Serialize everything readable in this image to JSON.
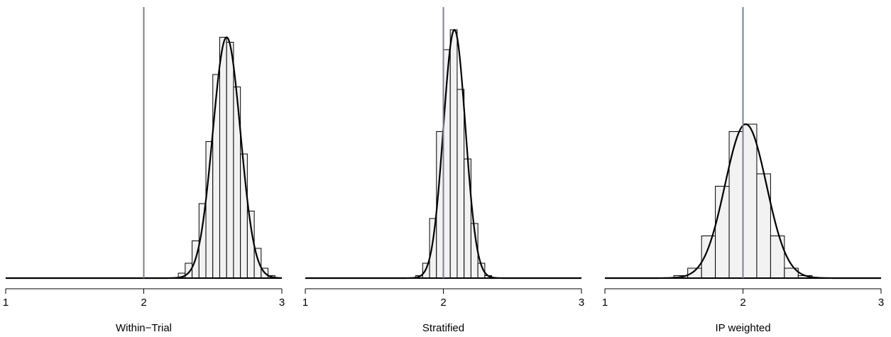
{
  "chart_data": [
    {
      "type": "bar",
      "title": "Within−Trial",
      "xlim": [
        1,
        3
      ],
      "x_ticks": [
        "1",
        "2",
        "3"
      ],
      "reference_x": 2,
      "density_curve": {
        "mean": 2.6,
        "sd": 0.1
      },
      "bin_width": 0.05,
      "bins": [
        {
          "x0": 2.25,
          "value": 0.02
        },
        {
          "x0": 2.3,
          "value": 0.06
        },
        {
          "x0": 2.35,
          "value": 0.15
        },
        {
          "x0": 2.4,
          "value": 0.3
        },
        {
          "x0": 2.45,
          "value": 0.55
        },
        {
          "x0": 2.5,
          "value": 0.82
        },
        {
          "x0": 2.55,
          "value": 0.97
        },
        {
          "x0": 2.6,
          "value": 0.95
        },
        {
          "x0": 2.65,
          "value": 0.77
        },
        {
          "x0": 2.7,
          "value": 0.5
        },
        {
          "x0": 2.75,
          "value": 0.27
        },
        {
          "x0": 2.8,
          "value": 0.12
        },
        {
          "x0": 2.85,
          "value": 0.04
        },
        {
          "x0": 2.9,
          "value": 0.01
        }
      ]
    },
    {
      "type": "bar",
      "title": "Stratified",
      "xlim": [
        1,
        3
      ],
      "x_ticks": [
        "1",
        "2",
        "3"
      ],
      "reference_x": 2,
      "density_curve": {
        "mean": 2.08,
        "sd": 0.08
      },
      "bin_width": 0.05,
      "bins": [
        {
          "x0": 1.8,
          "value": 0.01
        },
        {
          "x0": 1.85,
          "value": 0.06
        },
        {
          "x0": 1.9,
          "value": 0.24
        },
        {
          "x0": 1.95,
          "value": 0.59
        },
        {
          "x0": 2.0,
          "value": 0.92
        },
        {
          "x0": 2.05,
          "value": 1.0
        },
        {
          "x0": 2.1,
          "value": 0.76
        },
        {
          "x0": 2.15,
          "value": 0.48
        },
        {
          "x0": 2.2,
          "value": 0.22
        },
        {
          "x0": 2.25,
          "value": 0.06
        },
        {
          "x0": 2.3,
          "value": 0.01
        }
      ]
    },
    {
      "type": "bar",
      "title": "IP weighted",
      "xlim": [
        1,
        3
      ],
      "x_ticks": [
        "1",
        "2",
        "3"
      ],
      "reference_x": 2,
      "density_curve": {
        "mean": 2.02,
        "sd": 0.15
      },
      "bin_width": 0.1,
      "bins": [
        {
          "x0": 1.5,
          "value": 0.01
        },
        {
          "x0": 1.6,
          "value": 0.04
        },
        {
          "x0": 1.7,
          "value": 0.17
        },
        {
          "x0": 1.8,
          "value": 0.37
        },
        {
          "x0": 1.9,
          "value": 0.59
        },
        {
          "x0": 2.0,
          "value": 0.62
        },
        {
          "x0": 2.1,
          "value": 0.42
        },
        {
          "x0": 2.2,
          "value": 0.17
        },
        {
          "x0": 2.3,
          "value": 0.04
        },
        {
          "x0": 2.4,
          "value": 0.01
        }
      ]
    }
  ],
  "colors": {
    "bar_fill": "#f2f2f2",
    "bar_stroke": "#000000",
    "curve": "#000000",
    "reference_line": "#7a8191",
    "axis": "#000000"
  }
}
